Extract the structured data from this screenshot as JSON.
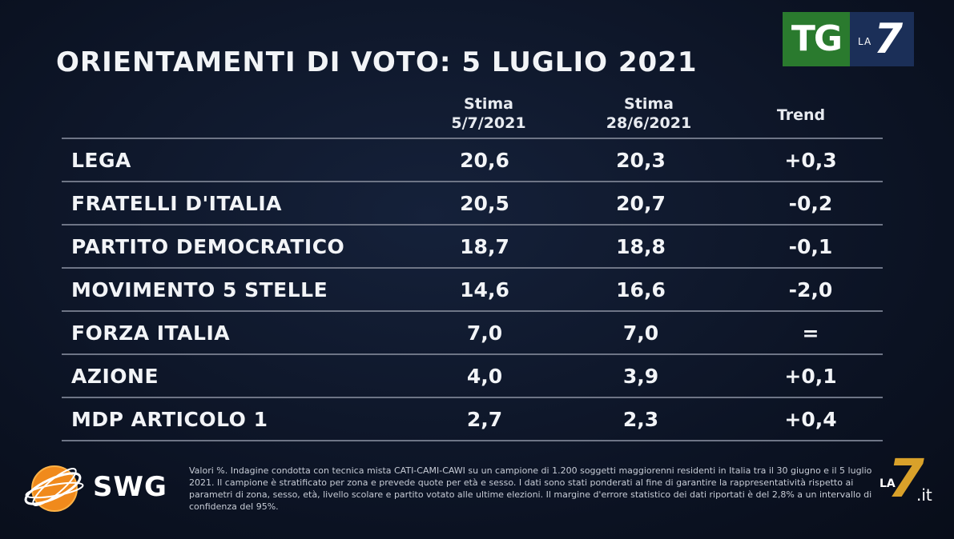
{
  "title": "ORIENTAMENTI DI VOTO: 5 LUGLIO 2021",
  "logo_tg": {
    "tg": "TG",
    "la": "LA",
    "seven": "7"
  },
  "columns": {
    "c1_line1": "Stima",
    "c1_line2": "5/7/2021",
    "c2_line1": "Stima",
    "c2_line2": "28/6/2021",
    "c3": "Trend"
  },
  "chart_data": {
    "type": "table",
    "title": "ORIENTAMENTI DI VOTO: 5 LUGLIO 2021",
    "columns": [
      "Stima 5/7/2021",
      "Stima 28/6/2021",
      "Trend"
    ],
    "rows": [
      {
        "party": "LEGA",
        "v1": "20,6",
        "v2": "20,3",
        "trend": "+0,3"
      },
      {
        "party": "FRATELLI D'ITALIA",
        "v1": "20,5",
        "v2": "20,7",
        "trend": "-0,2"
      },
      {
        "party": "PARTITO DEMOCRATICO",
        "v1": "18,7",
        "v2": "18,8",
        "trend": "-0,1"
      },
      {
        "party": "MOVIMENTO 5 STELLE",
        "v1": "14,6",
        "v2": "16,6",
        "trend": "-2,0"
      },
      {
        "party": "FORZA ITALIA",
        "v1": "7,0",
        "v2": "7,0",
        "trend": "="
      },
      {
        "party": "AZIONE",
        "v1": "4,0",
        "v2": "3,9",
        "trend": "+0,1"
      },
      {
        "party": "MDP ARTICOLO 1",
        "v1": "2,7",
        "v2": "2,3",
        "trend": "+0,4"
      }
    ]
  },
  "swg": {
    "text": "SWG"
  },
  "footnote": "Valori %. Indagine condotta con tecnica mista CATI-CAMI-CAWI su un campione di 1.200 soggetti maggiorenni residenti in Italia tra il 30 giugno e il 5 luglio 2021. Il campione è stratificato per zona e prevede quote per età e sesso. I dati sono stati ponderati al fine di garantire la rappresentatività rispetto ai parametri di zona, sesso, età, livello scolare e partito votato alle ultime elezioni. Il margine d'errore statistico dei dati riportati è del 2,8% a un intervallo di confidenza del 95%.",
  "la7_logo": {
    "la": "LA",
    "seven": "7",
    "it": ".it"
  },
  "colors": {
    "background": "#0d1526",
    "tg_green": "#2a7a2e",
    "tg_navy": "#1b2f58",
    "swg_orange": "#f08a1c",
    "la7_gold": "#d9a12a"
  }
}
